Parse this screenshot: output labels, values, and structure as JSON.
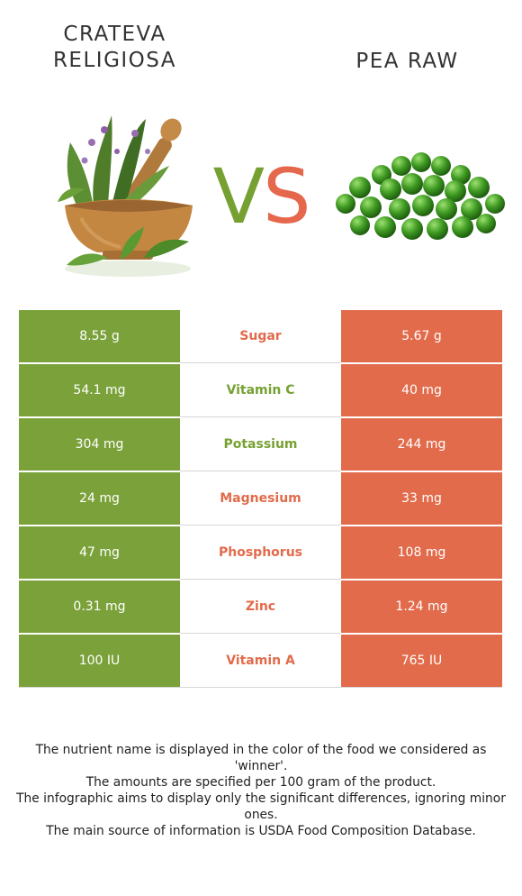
{
  "foods": {
    "left": {
      "name": "Crateva religiosa",
      "color": "#7ba23a"
    },
    "right": {
      "name": "Pea raw",
      "color": "#e26b4b"
    }
  },
  "vs": {
    "v": "V",
    "s": "S"
  },
  "nutrients": [
    {
      "name": "Sugar",
      "left": "8.55 g",
      "right": "5.67 g",
      "winner": "right"
    },
    {
      "name": "Vitamin C",
      "left": "54.1 mg",
      "right": "40 mg",
      "winner": "left"
    },
    {
      "name": "Potassium",
      "left": "304 mg",
      "right": "244 mg",
      "winner": "left"
    },
    {
      "name": "Magnesium",
      "left": "24 mg",
      "right": "33 mg",
      "winner": "right"
    },
    {
      "name": "Phosphorus",
      "left": "47 mg",
      "right": "108 mg",
      "winner": "right"
    },
    {
      "name": "Zinc",
      "left": "0.31 mg",
      "right": "1.24 mg",
      "winner": "right"
    },
    {
      "name": "Vitamin A",
      "left": "100 IU",
      "right": "765 IU",
      "winner": "right"
    }
  ],
  "footnotes": [
    "The nutrient name is displayed in the color of the food we considered as 'winner'.",
    "The amounts are specified per 100 gram of the product.",
    "The infographic aims to display only the significant differences, ignoring minor ones.",
    "The main source of information is USDA Food Composition Database."
  ]
}
